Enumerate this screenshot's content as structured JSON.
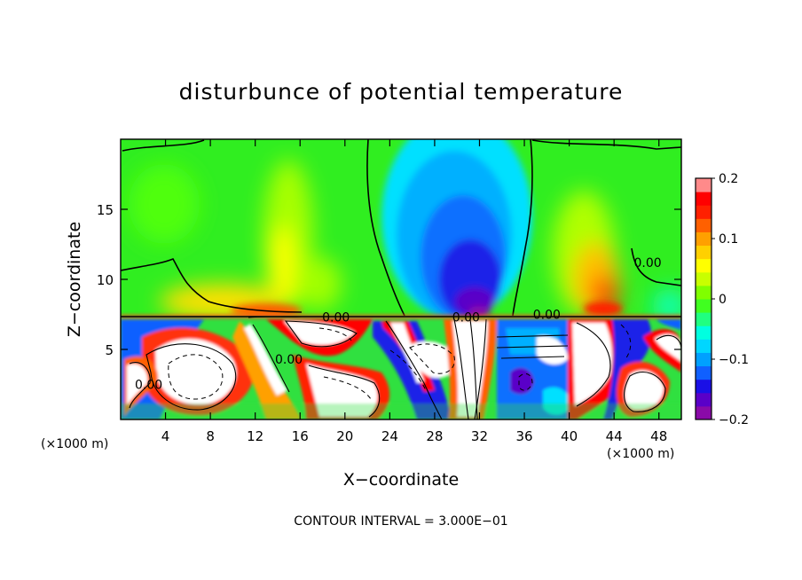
{
  "chart_data": {
    "type": "heatmap",
    "title": "disturbunce of potential temperature",
    "xlabel": "X−coordinate",
    "ylabel": "Z−coordinate",
    "x_unit": "(×1000 m)",
    "x_unit_right": "(×1000 m)",
    "footer": "CONTOUR INTERVAL = 3.000E−01",
    "xlim": [
      0,
      50
    ],
    "ylim": [
      0,
      20
    ],
    "x_ticks": [
      4,
      8,
      12,
      16,
      20,
      24,
      28,
      32,
      36,
      40,
      44,
      48
    ],
    "y_ticks": [
      5,
      10,
      15
    ],
    "colorbar": {
      "min": -0.2,
      "max": 0.2,
      "tick_values": [
        0.2,
        0.1,
        0,
        -0.1,
        -0.2
      ],
      "tick_labels": [
        "0.2",
        "0.1",
        "0",
        "−0.1",
        "−0.2"
      ],
      "colors": [
        "#8a0aa8",
        "#5a00c8",
        "#1a10e6",
        "#1060ff",
        "#00a0ff",
        "#00d6ff",
        "#00ffe0",
        "#20ff80",
        "#40ff20",
        "#80ff00",
        "#c8ff00",
        "#ffff00",
        "#ffd000",
        "#ffa000",
        "#ff6000",
        "#ff2000",
        "#ff0000",
        "#ff8a8a"
      ]
    },
    "contour_labels": [
      {
        "text": "0.00",
        "x": 19.2,
        "z": 7.3
      },
      {
        "text": "0.00",
        "x": 30.8,
        "z": 7.3
      },
      {
        "text": "0.00",
        "x": 38.0,
        "z": 7.5
      },
      {
        "text": "0.00",
        "x": 47.0,
        "z": 11.2
      },
      {
        "text": "0.00",
        "x": 15.0,
        "z": 4.3
      },
      {
        "text": "0.00",
        "x": 2.5,
        "z": 2.5
      }
    ]
  }
}
